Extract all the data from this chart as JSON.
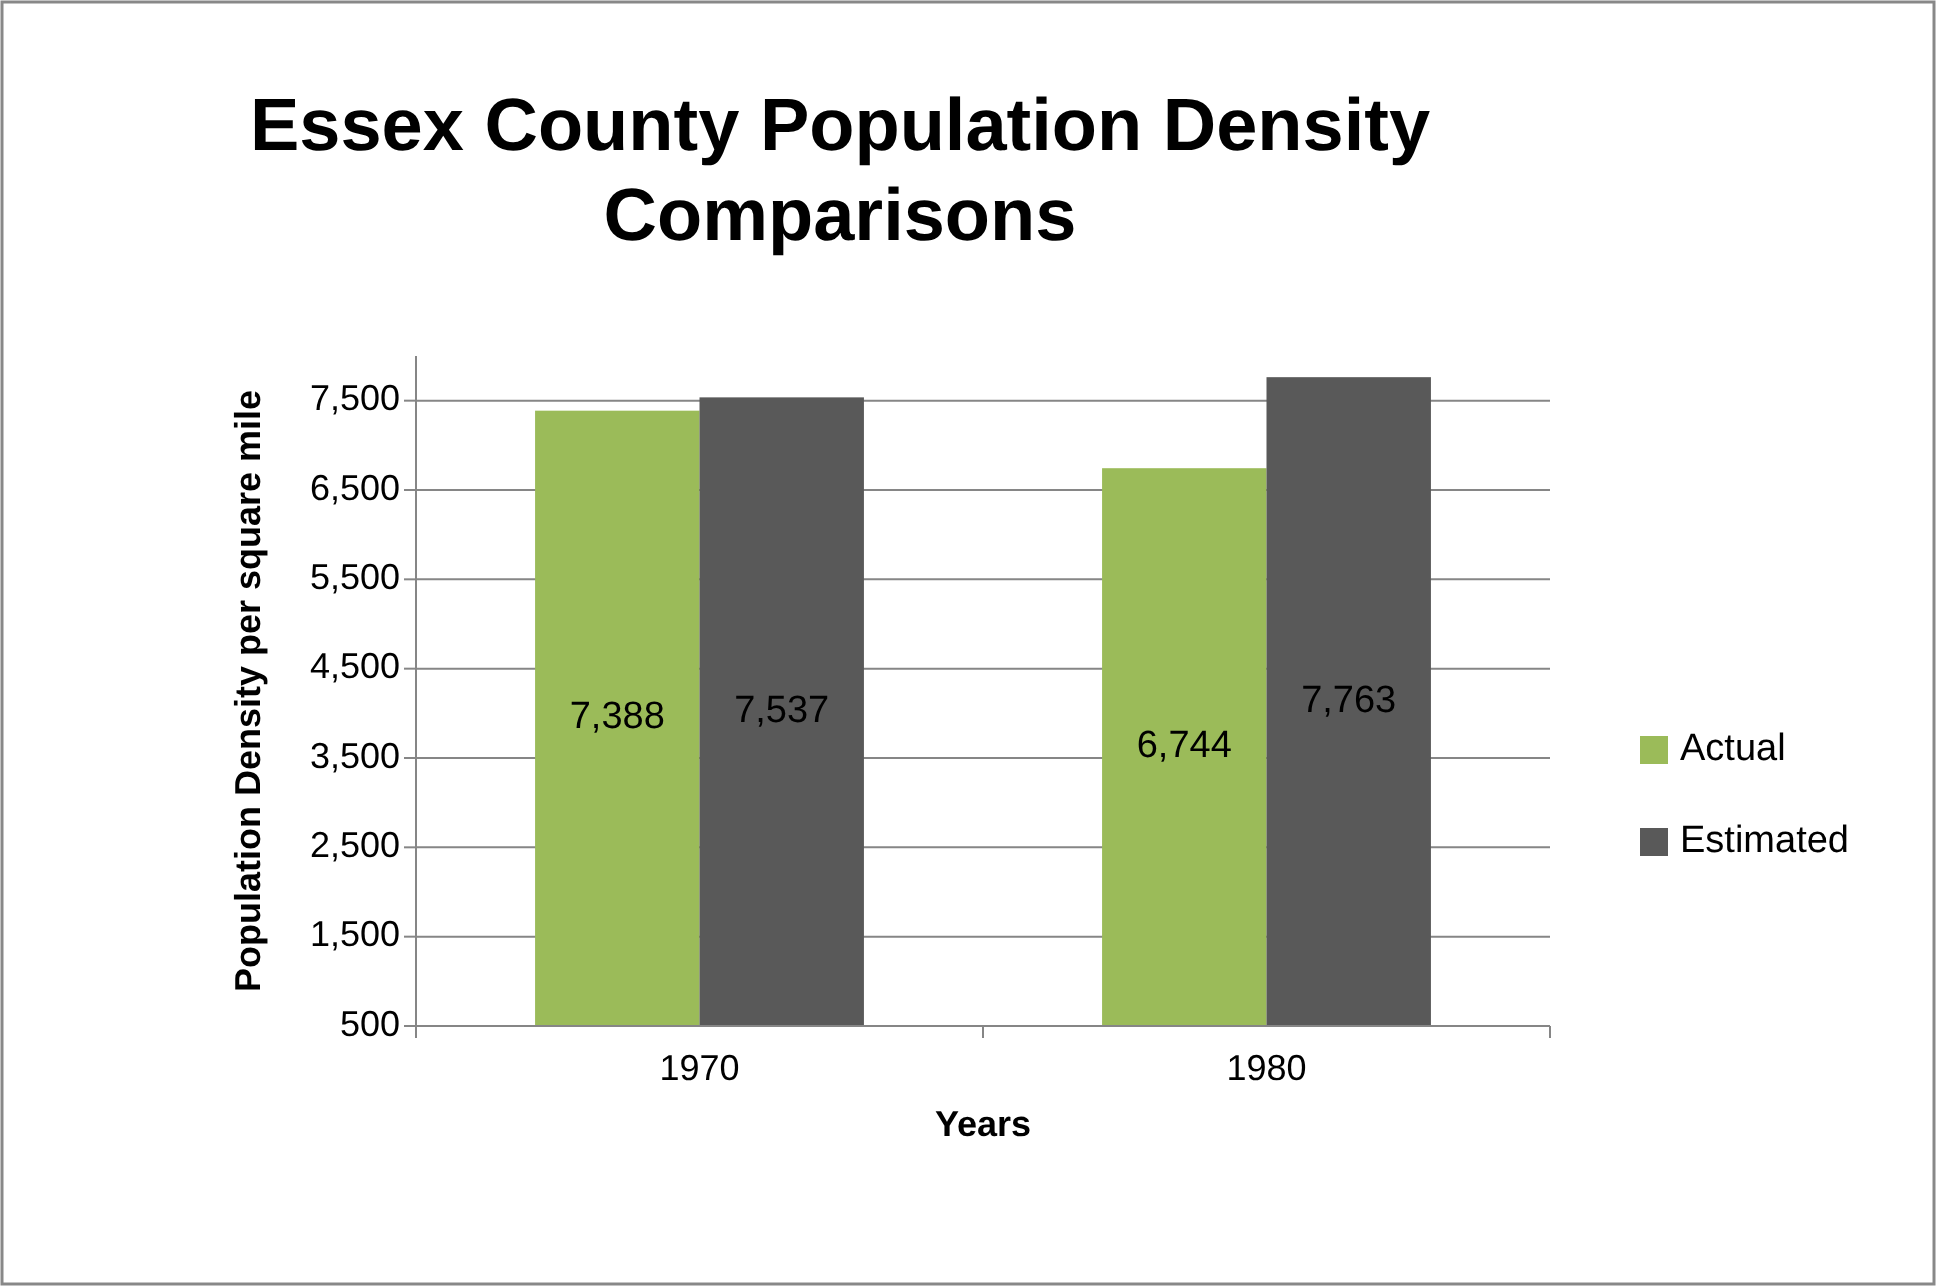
{
  "chart_data": {
    "type": "bar",
    "title": "Essex County Population Density Comparisons",
    "xlabel": "Years",
    "ylabel": "Population Density per square mile",
    "categories": [
      "1970",
      "1980"
    ],
    "series": [
      {
        "name": "Actual",
        "color": "#9bbb59",
        "values": [
          7388,
          6744
        ],
        "value_labels": [
          "7,388",
          "6,744"
        ]
      },
      {
        "name": "Estimated",
        "color": "#595959",
        "values": [
          7537,
          7763
        ],
        "value_labels": [
          "7,537",
          "7,763"
        ]
      }
    ],
    "ylim": [
      500,
      8000
    ],
    "yticks": [
      {
        "value": 500,
        "label": "500"
      },
      {
        "value": 1500,
        "label": "1,500"
      },
      {
        "value": 2500,
        "label": "2,500"
      },
      {
        "value": 3500,
        "label": "3,500"
      },
      {
        "value": 4500,
        "label": "4,500"
      },
      {
        "value": 5500,
        "label": "5,500"
      },
      {
        "value": 6500,
        "label": "6,500"
      },
      {
        "value": 7500,
        "label": "7,500"
      }
    ],
    "grid": "y",
    "legend": "right"
  }
}
